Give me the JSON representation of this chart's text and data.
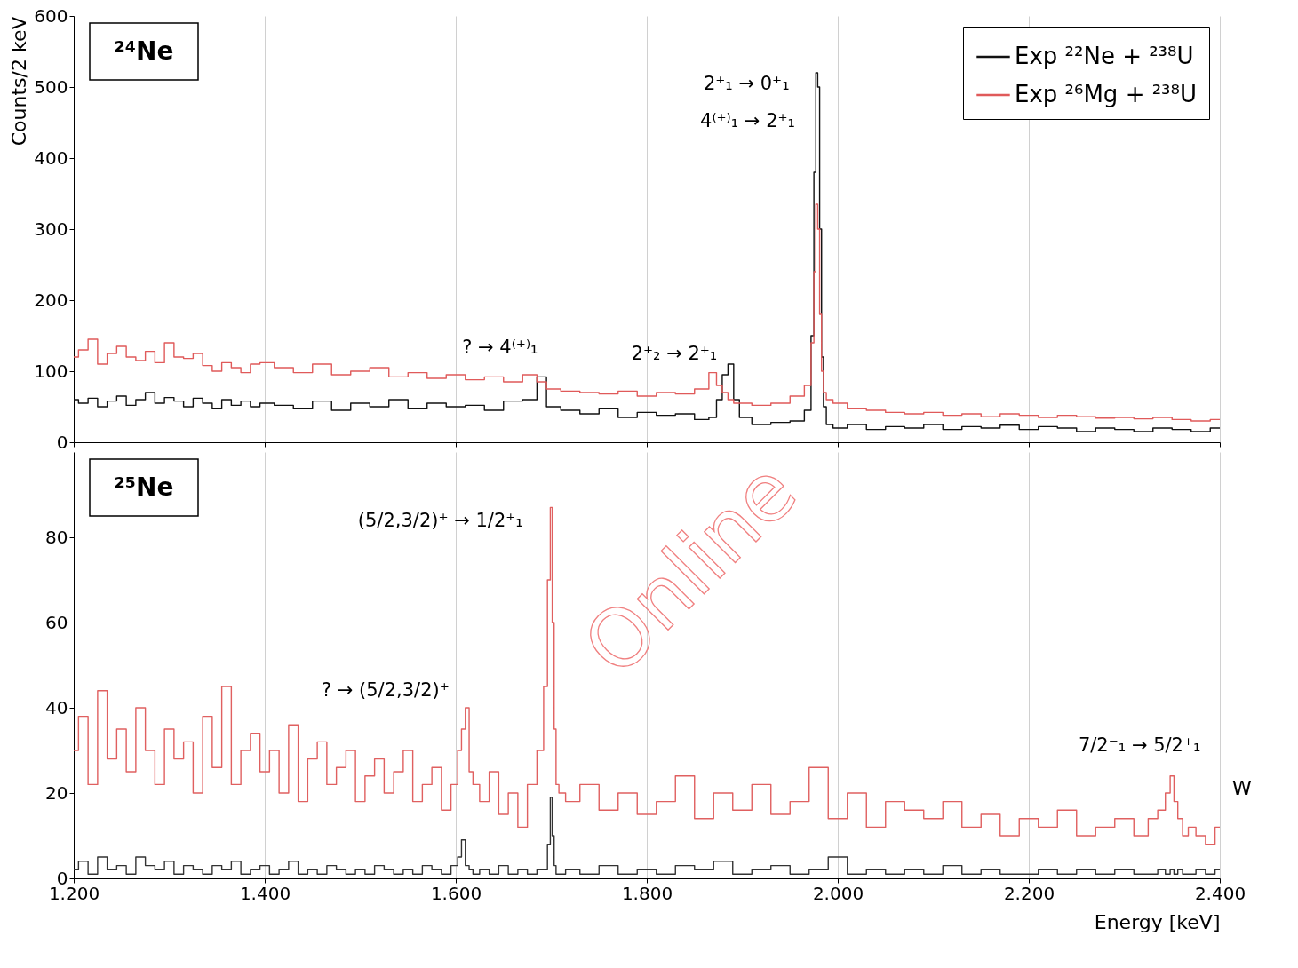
{
  "chart_data": [
    {
      "type": "step",
      "ylabel": "Counts/2 keV",
      "xlim": [
        1200,
        2400
      ],
      "ylim": [
        0,
        600
      ],
      "yticks": [
        0,
        100,
        200,
        300,
        400,
        500,
        600
      ],
      "xticks": [
        {
          "value": 1200,
          "label": null
        },
        {
          "value": 1400,
          "label": null
        },
        {
          "value": 1600,
          "label": null
        },
        {
          "value": 1800,
          "label": null
        },
        {
          "value": 2000,
          "label": null
        },
        {
          "value": 2200,
          "label": null
        },
        {
          "value": 2400,
          "label": null
        }
      ],
      "tick_labels": "y",
      "grid": "x",
      "legend": "top right",
      "x": [
        1200,
        1210,
        1220,
        1230,
        1240,
        1250,
        1260,
        1270,
        1280,
        1290,
        1300,
        1310,
        1320,
        1330,
        1340,
        1350,
        1360,
        1370,
        1380,
        1390,
        1400,
        1420,
        1440,
        1460,
        1480,
        1500,
        1520,
        1540,
        1560,
        1580,
        1600,
        1620,
        1640,
        1660,
        1680,
        1690,
        1700,
        1720,
        1740,
        1760,
        1780,
        1800,
        1820,
        1840,
        1860,
        1870,
        1876,
        1882,
        1888,
        1894,
        1900,
        1920,
        1940,
        1960,
        1970,
        1974,
        1976,
        1978,
        1980,
        1982,
        1984,
        1986,
        1990,
        2000,
        2020,
        2040,
        2060,
        2080,
        2100,
        2120,
        2140,
        2160,
        2180,
        2200,
        2220,
        2240,
        2260,
        2280,
        2300,
        2320,
        2340,
        2360,
        2380,
        2400
      ],
      "series": [
        {
          "name": "Exp ²²Ne + ²³⁸U",
          "color": "#111111",
          "values": [
            60,
            55,
            62,
            50,
            58,
            65,
            52,
            60,
            70,
            55,
            63,
            58,
            50,
            62,
            55,
            48,
            60,
            52,
            58,
            50,
            55,
            52,
            48,
            58,
            45,
            55,
            50,
            60,
            48,
            55,
            50,
            52,
            45,
            58,
            60,
            92,
            50,
            45,
            40,
            48,
            35,
            42,
            38,
            40,
            32,
            35,
            60,
            95,
            110,
            60,
            35,
            25,
            28,
            30,
            45,
            150,
            380,
            520,
            500,
            300,
            120,
            50,
            25,
            20,
            25,
            18,
            22,
            20,
            25,
            18,
            22,
            20,
            24,
            18,
            22,
            20,
            15,
            20,
            18,
            15,
            20,
            18,
            15,
            20
          ]
        },
        {
          "name": "Exp ²⁶Mg + ²³⁸U",
          "color": "#e05a5a",
          "values": [
            120,
            130,
            145,
            110,
            125,
            135,
            120,
            115,
            128,
            112,
            140,
            120,
            118,
            125,
            108,
            100,
            112,
            105,
            98,
            110,
            112,
            105,
            98,
            110,
            95,
            100,
            105,
            92,
            98,
            90,
            95,
            88,
            92,
            85,
            95,
            85,
            75,
            72,
            70,
            68,
            72,
            65,
            70,
            68,
            75,
            98,
            80,
            70,
            60,
            55,
            55,
            52,
            55,
            65,
            80,
            140,
            240,
            335,
            300,
            180,
            100,
            70,
            60,
            55,
            48,
            45,
            42,
            40,
            42,
            38,
            40,
            36,
            40,
            38,
            35,
            38,
            36,
            34,
            35,
            33,
            35,
            32,
            30,
            32
          ]
        }
      ],
      "annotations": [
        "²⁴Ne",
        "2⁺₁ → 0⁺₁",
        "4⁽⁺⁾₁ → 2⁺₁",
        "? → 4⁽⁺⁾₁",
        "2⁺₂ → 2⁺₁"
      ]
    },
    {
      "type": "step",
      "xlabel": "Energy [keV]",
      "xlim": [
        1200,
        2400
      ],
      "ylim": [
        0,
        100
      ],
      "yticks": [
        0,
        20,
        40,
        60,
        80
      ],
      "xticks": [
        {
          "value": 1200,
          "label": "1.200"
        },
        {
          "value": 1400,
          "label": "1.400"
        },
        {
          "value": 1600,
          "label": "1.600"
        },
        {
          "value": 1800,
          "label": "1.800"
        },
        {
          "value": 2000,
          "label": "2.000"
        },
        {
          "value": 2200,
          "label": "2.200"
        },
        {
          "value": 2400,
          "label": "2.400"
        }
      ],
      "grid": "x",
      "x": [
        1200,
        1210,
        1220,
        1230,
        1240,
        1250,
        1260,
        1270,
        1280,
        1290,
        1300,
        1310,
        1320,
        1330,
        1340,
        1350,
        1360,
        1370,
        1380,
        1390,
        1400,
        1410,
        1420,
        1430,
        1440,
        1450,
        1460,
        1470,
        1480,
        1490,
        1500,
        1510,
        1520,
        1530,
        1540,
        1550,
        1560,
        1570,
        1580,
        1590,
        1600,
        1604,
        1608,
        1612,
        1616,
        1620,
        1630,
        1640,
        1650,
        1660,
        1670,
        1680,
        1690,
        1694,
        1698,
        1700,
        1702,
        1704,
        1706,
        1710,
        1720,
        1740,
        1760,
        1780,
        1800,
        1820,
        1840,
        1860,
        1880,
        1900,
        1920,
        1940,
        1960,
        1980,
        2000,
        2020,
        2040,
        2060,
        2080,
        2100,
        2120,
        2140,
        2160,
        2180,
        2200,
        2220,
        2240,
        2260,
        2280,
        2300,
        2320,
        2330,
        2340,
        2346,
        2350,
        2354,
        2358,
        2364,
        2370,
        2380,
        2390,
        2400
      ],
      "series": [
        {
          "color": "#333333",
          "values": [
            2,
            4,
            1,
            5,
            2,
            3,
            1,
            5,
            3,
            2,
            4,
            1,
            3,
            2,
            1,
            3,
            2,
            4,
            1,
            2,
            3,
            1,
            2,
            4,
            1,
            2,
            1,
            3,
            2,
            1,
            2,
            1,
            3,
            2,
            1,
            2,
            1,
            3,
            2,
            1,
            3,
            5,
            9,
            3,
            2,
            1,
            2,
            1,
            3,
            1,
            2,
            1,
            2,
            2,
            8,
            19,
            10,
            3,
            1,
            1,
            2,
            1,
            3,
            1,
            2,
            1,
            3,
            2,
            4,
            1,
            2,
            3,
            1,
            2,
            5,
            1,
            2,
            1,
            2,
            1,
            3,
            1,
            2,
            1,
            1,
            2,
            1,
            2,
            1,
            2,
            1,
            1,
            2,
            1,
            2,
            1,
            2,
            1,
            1,
            2,
            1,
            2
          ]
        },
        {
          "color": "#e06060",
          "values": [
            30,
            38,
            22,
            44,
            28,
            35,
            25,
            40,
            30,
            22,
            35,
            28,
            32,
            20,
            38,
            26,
            45,
            22,
            30,
            34,
            25,
            30,
            20,
            36,
            18,
            28,
            32,
            22,
            26,
            30,
            18,
            24,
            28,
            20,
            25,
            30,
            18,
            22,
            26,
            16,
            22,
            30,
            35,
            40,
            25,
            22,
            18,
            25,
            15,
            20,
            12,
            22,
            30,
            45,
            70,
            87,
            60,
            35,
            22,
            20,
            18,
            22,
            16,
            20,
            15,
            18,
            24,
            14,
            20,
            16,
            22,
            15,
            18,
            26,
            14,
            20,
            12,
            18,
            16,
            14,
            18,
            12,
            15,
            10,
            14,
            12,
            16,
            10,
            12,
            14,
            10,
            14,
            16,
            20,
            24,
            18,
            14,
            10,
            12,
            10,
            8,
            12
          ]
        }
      ],
      "annotations": [
        "²⁵Ne",
        "Online",
        "W",
        "(5/2,3/2)⁺ → 1/2⁺₁",
        "? → (5/2,3/2)⁺",
        "7/2⁻₁ → 5/2⁺₁"
      ]
    }
  ]
}
